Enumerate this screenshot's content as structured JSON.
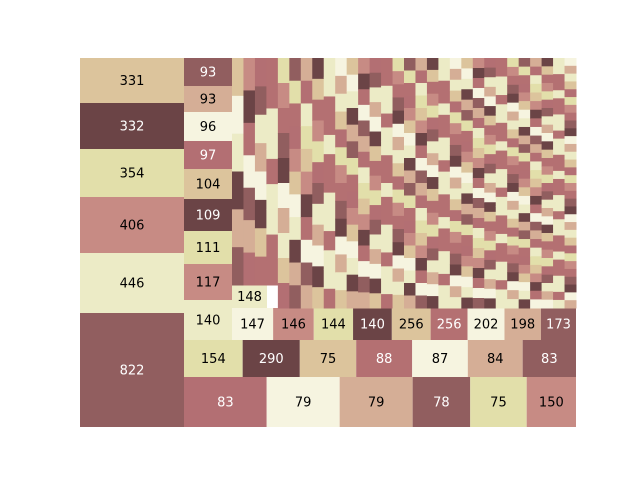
{
  "chart_data": {
    "type": "treemap",
    "title": "",
    "labeled_values": [
      331,
      332,
      354,
      406,
      446,
      822,
      93,
      93,
      96,
      97,
      104,
      109,
      111,
      117,
      140,
      154,
      290,
      75,
      88,
      87,
      84,
      83,
      83,
      79,
      79,
      78,
      75,
      150,
      148,
      147,
      146,
      144,
      140,
      256,
      256,
      202,
      198,
      173
    ],
    "palette": [
      "#dcc49c",
      "#6b4446",
      "#e2dfaa",
      "#c78b84",
      "#ecebc6",
      "#915e5f",
      "#b36f73",
      "#f6f4e0",
      "#d5ae96",
      "#b47072"
    ],
    "label_color_on_dark": "#ffffff",
    "label_color_on_light": "#000000",
    "note_unlabeled": "Many further small rectangles fill the upper-right region; they carry no value labels.",
    "blocks": [
      {
        "rows": [
          [
            331
          ],
          [
            332
          ],
          [
            354
          ],
          [
            406
          ],
          [
            446
          ],
          [
            822
          ]
        ],
        "colors": [
          "#dcc49c",
          "#6b4446",
          "#e2dfaa",
          "#c78b84",
          "#ecebc6",
          "#915e5f"
        ]
      },
      {
        "rows": [
          [
            93
          ],
          [
            93
          ],
          [
            96
          ],
          [
            97
          ],
          [
            104
          ],
          [
            109
          ],
          [
            111
          ],
          [
            117
          ],
          [
            140
          ],
          [
            154
          ],
          [
            290
          ]
        ]
      },
      {
        "bottom_row": [
          256,
          256,
          202,
          198,
          173
        ]
      },
      {
        "middle_row": [
          150,
          148,
          147,
          146,
          144,
          140
        ]
      },
      {
        "small_row": [
          75,
          88,
          87,
          84,
          83,
          83,
          79,
          79,
          78,
          75
        ]
      }
    ]
  }
}
